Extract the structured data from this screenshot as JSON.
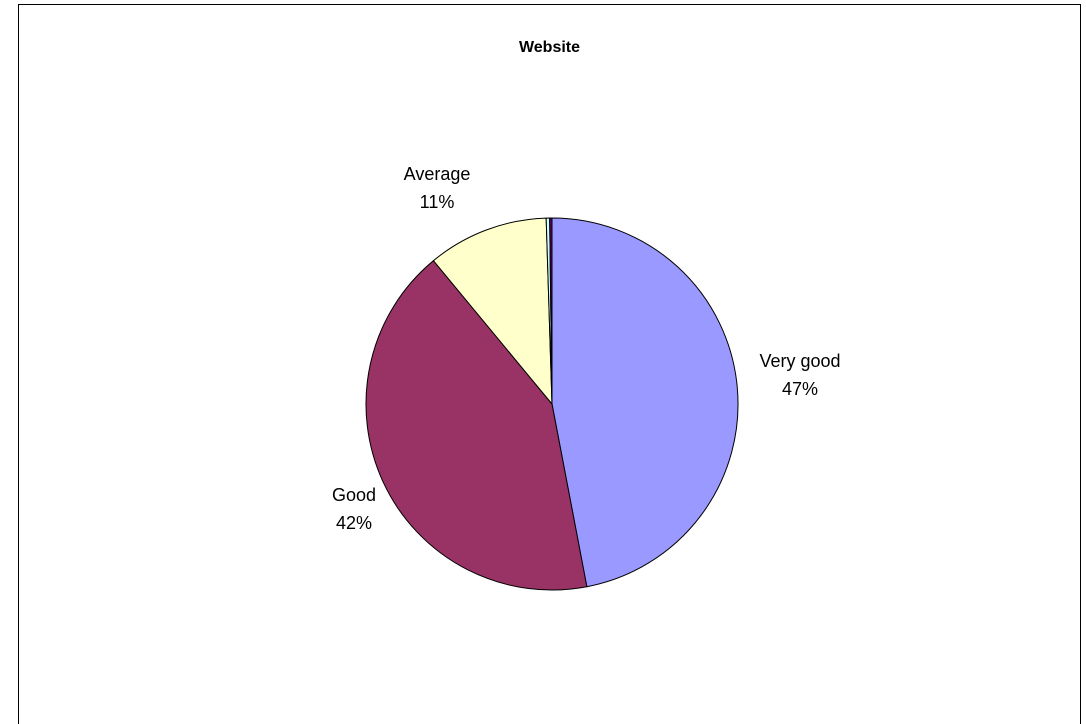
{
  "chart_data": {
    "type": "pie",
    "title": "Website",
    "slices": [
      {
        "name": "Very good",
        "value": 47,
        "percent_label": "47%",
        "color": "#9999ff"
      },
      {
        "name": "Good",
        "value": 42,
        "percent_label": "42%",
        "color": "#993366"
      },
      {
        "name": "Average",
        "value": 10.5,
        "percent_label": "11%",
        "color": "#ffffcc"
      },
      {
        "name": "",
        "value": 0.3,
        "percent_label": "",
        "color": "#ccffff"
      },
      {
        "name": "",
        "value": 0.2,
        "percent_label": "",
        "color": "#660066"
      }
    ],
    "legend": "none"
  }
}
